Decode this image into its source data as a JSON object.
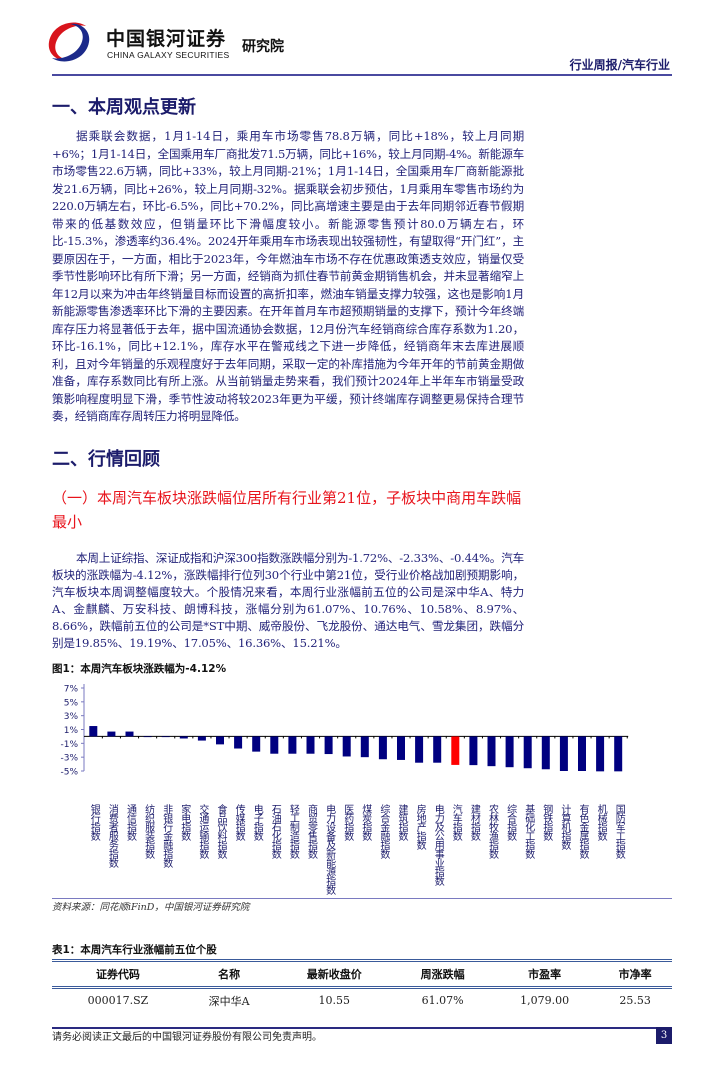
{
  "header": {
    "brand_cn": "中国银河证券",
    "brand_en": "CHINA GALAXY SECURITIES",
    "institute": "研究院",
    "report_type": "行业周报/汽车行业"
  },
  "section1": {
    "title": "一、本周观点更新",
    "paragraph": "据乘联会数据，1月1-14日，乘用车市场零售78.8万辆，同比+18%，较上月同期+6%；1月1-14日，全国乘用车厂商批发71.5万辆，同比+16%，较上月同期-4%。新能源车市场零售22.6万辆，同比+33%，较上月同期-21%；1月1-14日，全国乘用车厂商新能源批发21.6万辆，同比+26%，较上月同期-32%。据乘联会初步预估，1月乘用车零售市场约为220.0万辆左右，环比-6.5%，同比+70.2%，同比高增速主要是由于去年同期邻近春节假期带来的低基数效应，但销量环比下滑幅度较小。新能源零售预计80.0万辆左右，环比-15.3%，渗透率约36.4%。2024开年乘用车市场表现出较强韧性，有望取得“开门红”，主要原因在于，一方面，相比于2023年，今年燃油车市场不存在优惠政策透支效应，销量仅受季节性影响环比有所下滑；另一方面，经销商为抓住春节前黄金期销售机会，并未显著缩窄上年12月以来为冲击年终销量目标而设置的高折扣率，燃油车销量支撑力较强，这也是影响1月新能源零售渗透率环比下滑的主要因素。在开年首月车市超预期销量的支撑下，预计今年终端库存压力将显著低于去年，据中国流通协会数据，12月份汽车经销商综合库存系数为1.20，环比-16.1%，同比+12.1%，库存水平在警戒线之下进一步降低，经销商年末去库进展顺利，且对今年销量的乐观程度好于去年同期，采取一定的补库措施为今年开年的节前黄金期做准备，库存系数同比有所上涨。从当前销量走势来看，我们预计2024年上半年车市销量受政策影响程度明显下滑，季节性波动将较2023年更为平缓，预计终端库存调整更易保持合理节奏，经销商库存周转压力将明显降低。"
  },
  "section2": {
    "title": "二、行情回顾",
    "subheading": "（一）本周汽车板块涨跌幅位居所有行业第21位，子板块中商用车跌幅最小",
    "paragraph": "本周上证综指、深证成指和沪深300指数涨跌幅分别为-1.72%、-2.33%、-0.44%。汽车板块的涨跌幅为-4.12%，涨跌幅排行位列30个行业中第21位，受行业价格战加剧预期影响，汽车板块本周调整幅度较大。个股情况来看，本周行业涨幅前五位的公司是深中华A、特力A、金麒麟、万安科技、朗博科技，涨幅分别为61.07%、10.76%、10.58%、8.97%、8.66%，跌幅前五位的公司是*ST中期、威帝股份、飞龙股份、通达电气、雪龙集团，跌幅分别是19.85%、19.19%、17.05%、16.36%、15.21%。"
  },
  "figure1": {
    "caption": "图1：本周汽车板块涨跌幅为-4.12%",
    "source": "资料来源：同花顺iFinD，中国银河证券研究院"
  },
  "chart_data": {
    "type": "bar",
    "title": "",
    "xlabel": "",
    "ylabel": "",
    "ylim": [
      -5,
      7
    ],
    "yticks": [
      "7%",
      "5%",
      "3%",
      "1%",
      "-1%",
      "-3%",
      "-5%"
    ],
    "ytick_values": [
      7,
      5,
      3,
      1,
      -1,
      -3,
      -5
    ],
    "grid": false,
    "highlight_category": "汽车指数",
    "colors": {
      "default": "#000080",
      "highlight": "#ff0000"
    },
    "categories": [
      "银行指数",
      "消费者服务指数",
      "通信指数",
      "纺织服装指数",
      "非银行金融指数",
      "家电指数",
      "交通运输指数",
      "食品饮料指数",
      "传媒指数",
      "电子指数",
      "石油石化指数",
      "轻工制造指数",
      "商贸零售指数",
      "电力设备及新能源指数",
      "医药指数",
      "煤炭指数",
      "综合金融指数",
      "建筑指数",
      "房地产指数",
      "电力及公用事业指数",
      "汽车指数",
      "建材指数",
      "农林牧渔指数",
      "综合指数",
      "基础化工指数",
      "钢铁指数",
      "计算机指数",
      "有色金属指数",
      "机械指数",
      "国防军工指数"
    ],
    "values": [
      1.5,
      0.7,
      0.7,
      -0.1,
      -0.1,
      -0.3,
      -0.6,
      -1.15,
      -1.75,
      -2.2,
      -2.5,
      -2.5,
      -2.5,
      -2.55,
      -2.9,
      -3.0,
      -3.3,
      -3.4,
      -3.8,
      -3.8,
      -4.12,
      -4.15,
      -4.3,
      -4.45,
      -4.6,
      -4.75,
      -5.0,
      -5.0,
      -5.05,
      -5.05
    ]
  },
  "table1": {
    "caption": "表1：本周汽车行业涨幅前五位个股",
    "headers": [
      "证券代码",
      "名称",
      "最新收盘价",
      "周涨跌幅",
      "市盈率",
      "市净率"
    ],
    "rows": [
      [
        "000017.SZ",
        "深中华A",
        "10.55",
        "61.07%",
        "1,079.00",
        "25.53"
      ]
    ]
  },
  "footer": {
    "disclaimer": "请务必阅读正文最后的中国银河证券股份有限公司免责声明。",
    "page": "3"
  }
}
